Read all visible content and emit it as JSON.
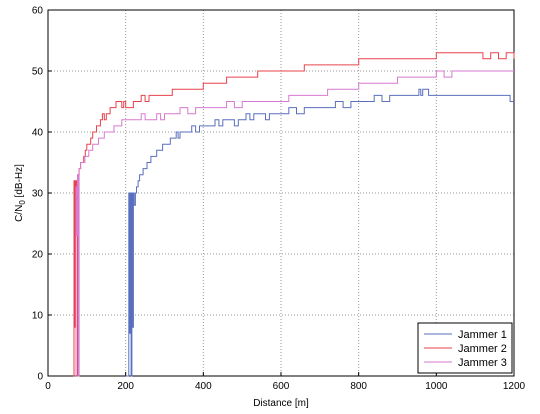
{
  "chart_data": {
    "type": "line",
    "title": "",
    "xlabel": "Distance [m]",
    "ylabel_main": "C/N",
    "ylabel_sub": "0",
    "ylabel_unit": " [dB-Hz]",
    "xlim": [
      0,
      1200
    ],
    "ylim": [
      0,
      60
    ],
    "xticks": [
      "0",
      "200",
      "400",
      "600",
      "800",
      "1000",
      "1200"
    ],
    "yticks": [
      "0",
      "10",
      "20",
      "30",
      "40",
      "50",
      "60"
    ],
    "grid": true,
    "legend_position": "bottom-right",
    "series": [
      {
        "name": "Jammer 1",
        "color": "#5a6fbf",
        "x": [
          200,
          205,
          208,
          210,
          212,
          214,
          216,
          218,
          220,
          222,
          225,
          228,
          232,
          236,
          240,
          245,
          250,
          255,
          260,
          265,
          270,
          275,
          280,
          285,
          290,
          295,
          300,
          305,
          310,
          315,
          320,
          325,
          330,
          335,
          340,
          345,
          350,
          360,
          370,
          380,
          390,
          400,
          410,
          420,
          430,
          440,
          450,
          460,
          470,
          480,
          490,
          500,
          510,
          520,
          530,
          540,
          550,
          560,
          570,
          580,
          590,
          600,
          620,
          640,
          660,
          680,
          700,
          720,
          740,
          760,
          780,
          800,
          820,
          840,
          860,
          880,
          900,
          920,
          940,
          955,
          960,
          965,
          980,
          1000,
          1020,
          1040,
          1060,
          1080,
          1100,
          1120,
          1140,
          1160,
          1180,
          1190,
          1200
        ],
        "y": [
          0,
          0,
          30,
          7,
          30,
          0,
          30,
          8,
          30,
          28,
          30,
          31,
          32,
          33,
          33,
          34,
          34,
          35,
          35,
          36,
          36,
          36,
          37,
          37,
          37,
          38,
          38,
          38,
          38,
          39,
          39,
          39,
          40,
          39,
          40,
          40,
          40,
          40,
          41,
          40,
          41,
          41,
          41,
          41,
          42,
          41,
          42,
          42,
          42,
          41,
          42,
          42,
          43,
          42,
          43,
          43,
          43,
          42,
          43,
          43,
          43,
          43,
          44,
          43,
          44,
          44,
          44,
          44,
          45,
          44,
          45,
          45,
          45,
          46,
          45,
          46,
          46,
          46,
          46,
          47,
          46,
          47,
          46,
          46,
          46,
          46,
          46,
          46,
          46,
          46,
          46,
          46,
          46,
          45,
          45
        ]
      },
      {
        "name": "Jammer 2",
        "color": "#e8434a",
        "x": [
          65,
          67,
          69,
          70,
          72,
          74,
          76,
          78,
          80,
          84,
          88,
          92,
          96,
          100,
          105,
          110,
          115,
          120,
          125,
          130,
          135,
          140,
          145,
          150,
          155,
          160,
          165,
          170,
          175,
          180,
          185,
          190,
          195,
          200,
          210,
          220,
          230,
          240,
          250,
          260,
          270,
          280,
          290,
          300,
          320,
          340,
          360,
          380,
          400,
          420,
          440,
          460,
          480,
          500,
          520,
          540,
          560,
          580,
          600,
          620,
          640,
          660,
          680,
          700,
          720,
          740,
          760,
          780,
          800,
          820,
          830,
          840,
          860,
          880,
          900,
          920,
          940,
          960,
          980,
          1000,
          1020,
          1040,
          1060,
          1080,
          1100,
          1120,
          1140,
          1160,
          1180,
          1200
        ],
        "y": [
          0,
          32,
          8,
          32,
          23,
          32,
          0,
          33,
          34,
          35,
          35,
          36,
          37,
          38,
          38,
          39,
          40,
          40,
          41,
          41,
          42,
          43,
          42,
          43,
          43,
          44,
          44,
          44,
          45,
          45,
          45,
          44,
          45,
          44,
          44,
          45,
          45,
          46,
          45,
          46,
          46,
          46,
          46,
          46,
          47,
          47,
          47,
          47,
          48,
          48,
          48,
          49,
          49,
          49,
          49,
          50,
          50,
          50,
          50,
          50,
          50,
          51,
          51,
          51,
          51,
          51,
          51,
          51,
          52,
          52,
          52,
          52,
          52,
          52,
          52,
          52,
          52,
          52,
          52,
          53,
          53,
          53,
          53,
          53,
          53,
          52,
          53,
          52,
          53,
          52
        ]
      },
      {
        "name": "Jammer 3",
        "color": "#d77ad0",
        "x": [
          70,
          72,
          74,
          76,
          78,
          80,
          82,
          84,
          86,
          90,
          95,
          100,
          105,
          110,
          115,
          120,
          125,
          130,
          135,
          140,
          145,
          150,
          160,
          170,
          180,
          190,
          200,
          210,
          220,
          230,
          240,
          250,
          260,
          270,
          280,
          290,
          300,
          320,
          340,
          360,
          380,
          400,
          420,
          440,
          460,
          480,
          500,
          520,
          540,
          560,
          580,
          600,
          620,
          640,
          660,
          680,
          700,
          720,
          740,
          760,
          780,
          800,
          820,
          840,
          860,
          880,
          900,
          920,
          940,
          960,
          980,
          1000,
          1020,
          1040,
          1060,
          1080,
          1100,
          1120,
          1140,
          1160,
          1180,
          1200
        ],
        "y": [
          0,
          31,
          23,
          33,
          0,
          34,
          34,
          35,
          35,
          35,
          36,
          36,
          37,
          37,
          38,
          38,
          38,
          39,
          39,
          39,
          40,
          40,
          40,
          41,
          41,
          42,
          42,
          42,
          42,
          42,
          43,
          42,
          42,
          42,
          43,
          42,
          43,
          43,
          44,
          43,
          44,
          44,
          44,
          44,
          45,
          44,
          45,
          45,
          45,
          45,
          45,
          45,
          46,
          46,
          46,
          46,
          46,
          47,
          47,
          47,
          47,
          48,
          48,
          48,
          48,
          48,
          49,
          49,
          49,
          49,
          49,
          50,
          49,
          50,
          50,
          50,
          50,
          50,
          50,
          50,
          50,
          50
        ]
      }
    ]
  }
}
